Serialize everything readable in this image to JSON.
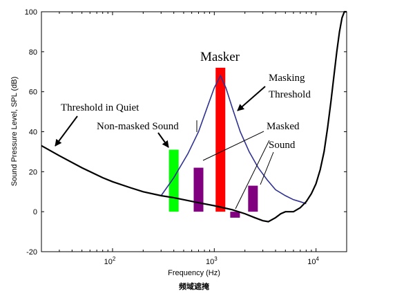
{
  "chart_data": {
    "type": "bar",
    "x_scale": "log",
    "xlim": [
      20,
      20000
    ],
    "ylim": [
      -20,
      100
    ],
    "xlabel": "Frequency (Hz)",
    "ylabel": "Sound Pressure Level, SPL (dB)",
    "caption": "频域遮掩",
    "y_ticks": [
      "-20",
      "0",
      "20",
      "40",
      "60",
      "80",
      "100"
    ],
    "x_ticks": [
      {
        "value": 100,
        "base": "10",
        "exp": "2"
      },
      {
        "value": 1000,
        "base": "10",
        "exp": "3"
      },
      {
        "value": 10000,
        "base": "10",
        "exp": "4"
      }
    ],
    "grid": false,
    "threshold_in_quiet": {
      "x": [
        20,
        30,
        50,
        80,
        100,
        150,
        200,
        300,
        400,
        500,
        700,
        1000,
        1500,
        2000,
        2500,
        3000,
        3400,
        4000,
        4500,
        5000,
        6000,
        7000,
        8000,
        9000,
        10000,
        11000,
        12000,
        13000,
        14000,
        15000,
        16000,
        17000,
        18000,
        19000,
        20000
      ],
      "y": [
        33,
        28,
        22,
        17,
        15,
        12,
        10,
        8,
        7,
        6,
        4.5,
        3,
        1,
        -1,
        -3,
        -4.5,
        -5,
        -3,
        -1,
        0,
        0,
        2,
        5,
        9,
        14,
        21,
        30,
        42,
        55,
        68,
        80,
        90,
        97,
        100,
        100
      ]
    },
    "masking_threshold": {
      "x": [
        300,
        400,
        550,
        700,
        850,
        1000,
        1150,
        1300,
        1500,
        1800,
        2200,
        2700,
        3300,
        4000,
        5000,
        6000,
        7000,
        8000
      ],
      "y": [
        8,
        17,
        29,
        40,
        52,
        62,
        68,
        62,
        52,
        40,
        30,
        22,
        16,
        11,
        8,
        6,
        5,
        4
      ]
    },
    "bars": [
      {
        "x": 400,
        "value": 31,
        "color": "#00ff00",
        "role": "non-masked"
      },
      {
        "x": 700,
        "value": 22,
        "color": "#800080",
        "role": "masked"
      },
      {
        "x": 1150,
        "value": 72,
        "color": "#ff0000",
        "role": "masker"
      },
      {
        "x": 1600,
        "value": -3,
        "color": "#800080",
        "role": "masked"
      },
      {
        "x": 2400,
        "value": 13,
        "color": "#800080",
        "role": "masked"
      }
    ],
    "annotations": {
      "masker": "Masker",
      "masking_threshold_line1": "Masking",
      "masking_threshold_line2": "Threshold",
      "threshold_in_quiet": "Threshold in Quiet",
      "non_masked_sound": "Non-masked Sound",
      "masked_sound_line1": "Masked",
      "masked_sound_line2": "Sound"
    },
    "colors": {
      "threshold_in_quiet": "#000000",
      "masking_threshold": "#2e3192",
      "masker": "#ff0000",
      "non_masked": "#00ff00",
      "masked": "#800080"
    }
  }
}
